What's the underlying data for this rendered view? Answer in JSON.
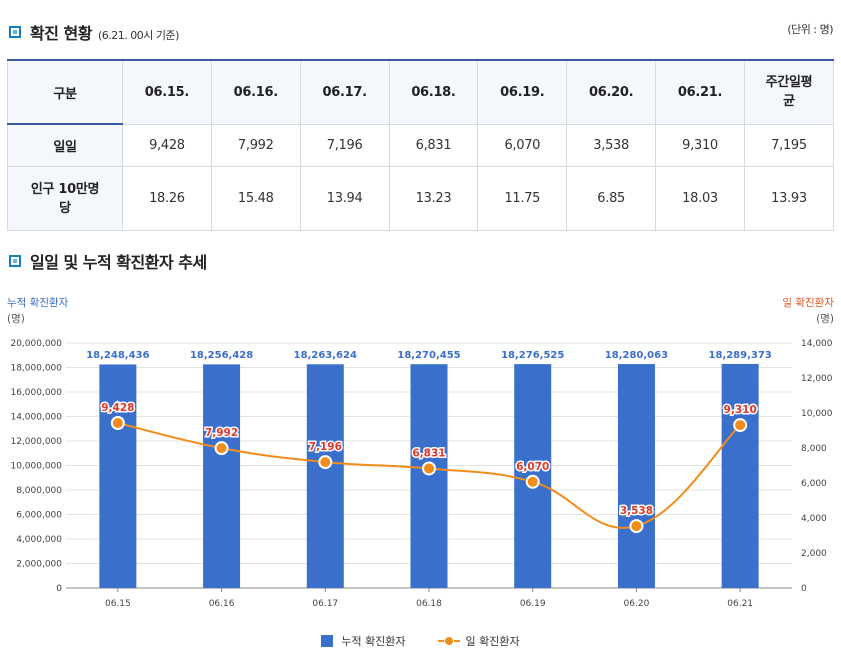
{
  "section1": {
    "title": "확진 현황",
    "subtitle": "(6.21. 00시 기준)",
    "unit": "(단위 : 명)"
  },
  "table": {
    "headers": [
      "구분",
      "06.15.",
      "06.16.",
      "06.17.",
      "06.18.",
      "06.19.",
      "06.20.",
      "06.21.",
      "주간일평균"
    ],
    "rows": [
      {
        "label": "일일",
        "values": [
          "9,428",
          "7,992",
          "7,196",
          "6,831",
          "6,070",
          "3,538",
          "9,310",
          "7,195"
        ]
      },
      {
        "label": "인구 10만명당",
        "values": [
          "18.26",
          "15.48",
          "13.94",
          "13.23",
          "11.75",
          "6.85",
          "18.03",
          "13.93"
        ]
      }
    ]
  },
  "section2": {
    "title": "일일 및 누적 확진환자 추세"
  },
  "colors": {
    "bar": "#3a6fcc",
    "line": "#f28c1b",
    "left_axis_label": "#3a6fcc",
    "right_axis_label": "#e0572a",
    "line_label": "#e0382a"
  },
  "chart_data": {
    "type": "bar",
    "categories": [
      "06.15",
      "06.16",
      "06.17",
      "06.18",
      "06.19",
      "06.20",
      "06.21"
    ],
    "series": [
      {
        "name": "누적 확진환자",
        "type": "bar",
        "axis": "left",
        "values": [
          18248436,
          18256428,
          18263624,
          18270455,
          18276525,
          18280063,
          18289373
        ],
        "labels": [
          "18,248,436",
          "18,256,428",
          "18,263,624",
          "18,270,455",
          "18,276,525",
          "18,280,063",
          "18,289,373"
        ]
      },
      {
        "name": "일 확진환자",
        "type": "line",
        "axis": "right",
        "values": [
          9428,
          7992,
          7196,
          6831,
          6070,
          3538,
          9310
        ],
        "labels": [
          "9,428",
          "7,992",
          "7,196",
          "6,831",
          "6,070",
          "3,538",
          "9,310"
        ]
      }
    ],
    "y_left": {
      "label": "누적 확진환자",
      "unit": "(명)",
      "range": [
        0,
        20000000
      ],
      "ticks": [
        "0",
        "2,000,000",
        "4,000,000",
        "6,000,000",
        "8,000,000",
        "10,000,000",
        "12,000,000",
        "14,000,000",
        "16,000,000",
        "18,000,000",
        "20,000,000"
      ]
    },
    "y_right": {
      "label": "일 확진환자",
      "unit": "(명)",
      "range": [
        0,
        14000
      ],
      "ticks": [
        "0",
        "2,000",
        "4,000",
        "6,000",
        "8,000",
        "10,000",
        "12,000",
        "14,000"
      ]
    },
    "grid": true,
    "legend_position": "bottom"
  }
}
